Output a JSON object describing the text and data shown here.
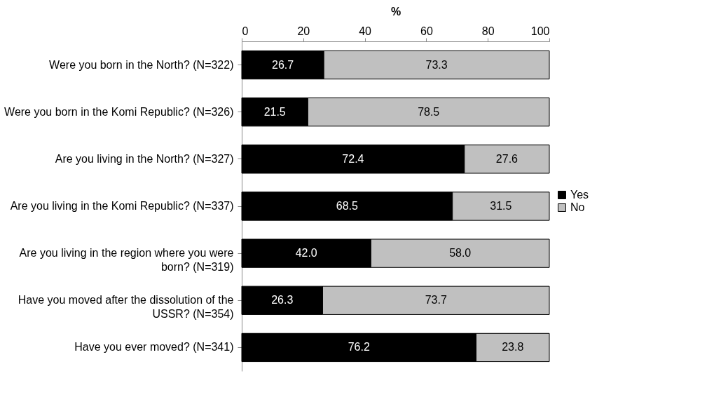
{
  "chart_data": {
    "type": "bar",
    "orientation": "horizontal",
    "stacked": true,
    "xlabel": "%",
    "categories": [
      "Were you born in the North? (N=322)",
      "Were you born in the Komi Republic? (N=326)",
      "Are you living in the North? (N=327)",
      "Are you living in the Komi Republic? (N=337)",
      "Are you living in the region where you were born? (N=319)",
      "Have you moved after the dissolution of the USSR? (N=354)",
      "Have you ever moved? (N=341)"
    ],
    "series": [
      {
        "name": "Yes",
        "color": "#000000",
        "values": [
          26.7,
          21.5,
          72.4,
          68.5,
          42.0,
          26.3,
          76.2
        ],
        "value_labels": [
          "26.7",
          "21.5",
          "72.4",
          "68.5",
          "42.0",
          "26.3",
          "76.2"
        ]
      },
      {
        "name": "No",
        "color": "#c0c0c0",
        "values": [
          73.3,
          78.5,
          27.6,
          31.5,
          58.0,
          73.7,
          23.8
        ],
        "value_labels": [
          "73.3",
          "78.5",
          "27.6",
          "31.5",
          "58.0",
          "73.7",
          "23.8"
        ]
      }
    ],
    "xlim": [
      0,
      100
    ],
    "xticks": [
      0,
      20,
      40,
      60,
      80,
      100
    ],
    "legend": "right",
    "grid": false
  }
}
